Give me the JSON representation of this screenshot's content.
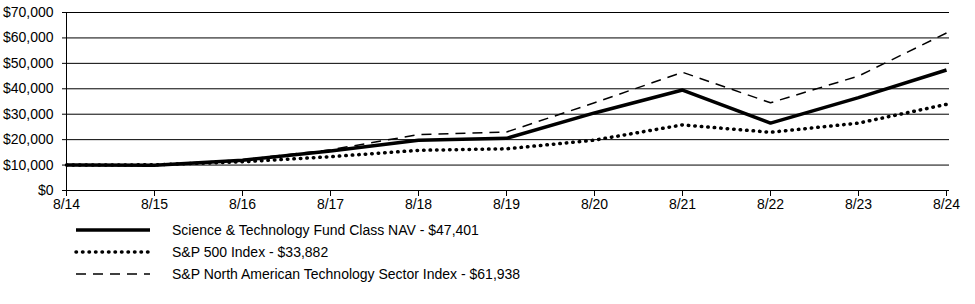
{
  "chart_data": {
    "type": "line",
    "x": [
      "8/14",
      "8/15",
      "8/16",
      "8/17",
      "8/18",
      "8/19",
      "8/20",
      "8/21",
      "8/22",
      "8/23",
      "8/24"
    ],
    "series": [
      {
        "name": "Science & Technology Fund Class NAV - $47,401",
        "color": "#000000",
        "line_style": "solid",
        "values": [
          10000,
          9900,
          11900,
          15500,
          19800,
          20500,
          30500,
          39500,
          26500,
          36500,
          47401
        ]
      },
      {
        "name": "S&P 500 Index - $33,882",
        "color": "#000000",
        "line_style": "dotted",
        "values": [
          10000,
          10100,
          11300,
          13300,
          15800,
          16400,
          19800,
          25800,
          22900,
          26500,
          33882
        ]
      },
      {
        "name": "S&P North American Technology Sector Index - $61,938",
        "color": "#000000",
        "line_style": "dashed",
        "values": [
          10000,
          10000,
          12100,
          16000,
          22000,
          23000,
          34500,
          46500,
          34500,
          45000,
          61938
        ]
      }
    ],
    "ylim": [
      0,
      70000
    ],
    "yticks": [
      {
        "value": 0,
        "label": "$0"
      },
      {
        "value": 10000,
        "label": "$10,000"
      },
      {
        "value": 20000,
        "label": "$20,000"
      },
      {
        "value": 30000,
        "label": "$30,000"
      },
      {
        "value": 40000,
        "label": "$40,000"
      },
      {
        "value": 50000,
        "label": "$50,000"
      },
      {
        "value": 60000,
        "label": "$60,000"
      },
      {
        "value": 70000,
        "label": "$70,000"
      }
    ],
    "grid": true,
    "legend": "bottom"
  }
}
